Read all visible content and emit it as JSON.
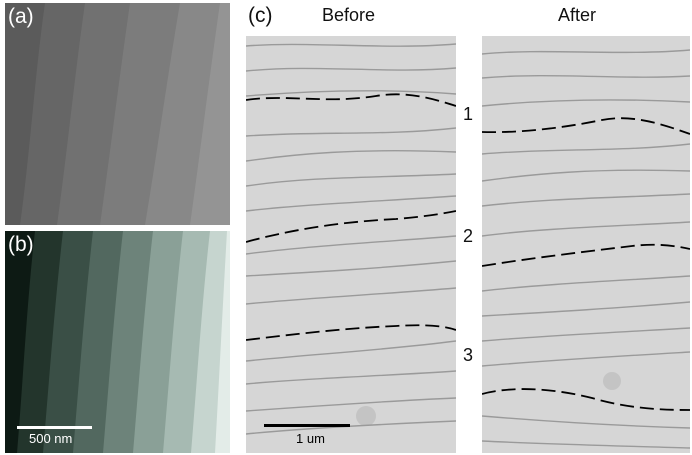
{
  "panels": {
    "a": {
      "label": "(a)"
    },
    "b": {
      "label": "(b)",
      "scalebar": "500 nm"
    },
    "c": {
      "label": "(c)",
      "before_title": "Before",
      "after_title": "After",
      "step_indices": [
        "1",
        "2",
        "3"
      ],
      "scalebar": "1 um"
    }
  },
  "colors": {
    "scalebar_b": "#ffffff",
    "scalebar_c": "#000000",
    "dashed_line": "#000000"
  }
}
